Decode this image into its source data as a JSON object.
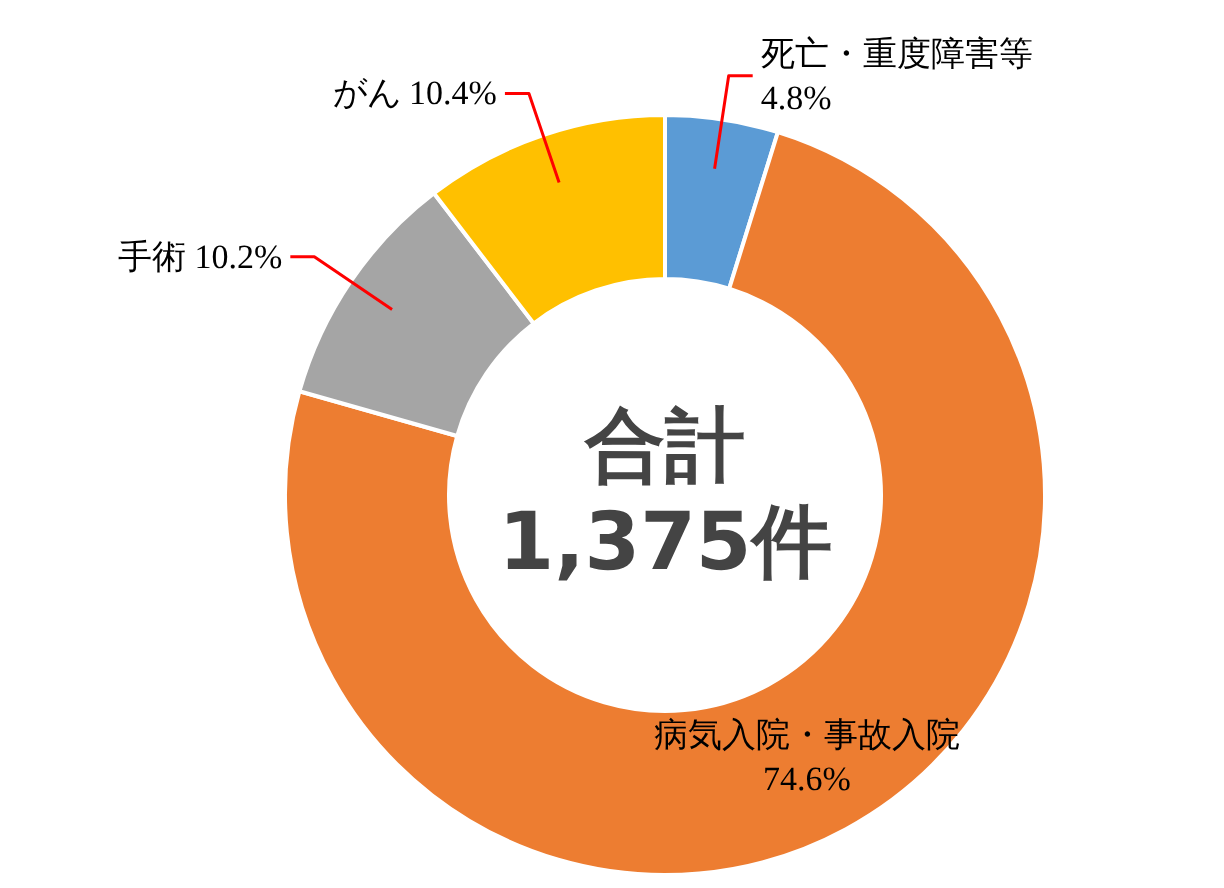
{
  "chart_data": {
    "type": "donut",
    "categories": [
      "死亡・重度障害等",
      "病気入院・事故入院",
      "手術",
      "がん"
    ],
    "values": [
      4.8,
      74.6,
      10.2,
      10.4
    ],
    "value_labels": [
      "4.8%",
      "74.6%",
      "10.2%",
      "10.4%"
    ],
    "colors": [
      "#5b9bd5",
      "#ed7d31",
      "#a5a5a5",
      "#ffc000"
    ],
    "annotations": [
      "合計",
      "1,375件"
    ],
    "legend": false
  }
}
